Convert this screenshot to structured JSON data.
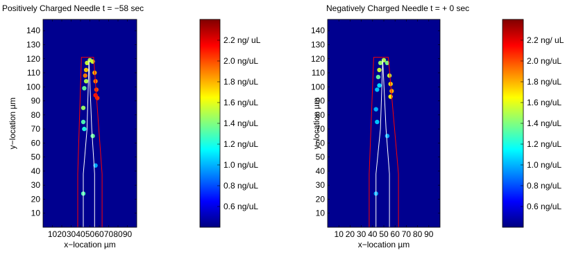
{
  "chart_data": [
    {
      "type": "heatmap",
      "title": "Positively Charged Needle t = −58 sec",
      "xlabel": "x−location µm",
      "ylabel": "y−location µm",
      "xlim": [
        0,
        100
      ],
      "ylim": [
        0,
        148
      ],
      "xticks": [
        10,
        20,
        30,
        40,
        50,
        60,
        70,
        80,
        90
      ],
      "yticks": [
        10,
        20,
        30,
        40,
        50,
        60,
        70,
        80,
        90,
        100,
        110,
        120,
        130,
        140
      ],
      "background_color": "#00008f",
      "needle_outline": {
        "color": "#ff0000",
        "points": [
          [
            37,
            0
          ],
          [
            37,
            38
          ],
          [
            41,
            121
          ],
          [
            54,
            121
          ],
          [
            63,
            38
          ],
          [
            63,
            0
          ]
        ]
      },
      "needle_center": {
        "color": "#ffffff",
        "points": [
          [
            43,
            0
          ],
          [
            43,
            38
          ],
          [
            47,
            70
          ],
          [
            49,
            119
          ],
          [
            52,
            70
          ],
          [
            55,
            38
          ],
          [
            55,
            0
          ]
        ]
      },
      "hotspots": [
        {
          "x": 47,
          "y": 117,
          "value": 1.55
        },
        {
          "x": 50,
          "y": 119,
          "value": 1.5
        },
        {
          "x": 53,
          "y": 118,
          "value": 1.55
        },
        {
          "x": 46,
          "y": 112,
          "value": 1.75
        },
        {
          "x": 45,
          "y": 108,
          "value": 1.9
        },
        {
          "x": 46,
          "y": 104,
          "value": 1.5
        },
        {
          "x": 55,
          "y": 110,
          "value": 1.8
        },
        {
          "x": 56,
          "y": 104,
          "value": 1.9
        },
        {
          "x": 57,
          "y": 98,
          "value": 2.0
        },
        {
          "x": 56,
          "y": 94,
          "value": 2.1
        },
        {
          "x": 58,
          "y": 92,
          "value": 2.05
        },
        {
          "x": 44,
          "y": 99,
          "value": 1.35
        },
        {
          "x": 43,
          "y": 85,
          "value": 1.45
        },
        {
          "x": 43,
          "y": 75,
          "value": 1.3
        },
        {
          "x": 44,
          "y": 70,
          "value": 1.2
        },
        {
          "x": 53,
          "y": 65,
          "value": 1.35
        },
        {
          "x": 56,
          "y": 44,
          "value": 1.0
        },
        {
          "x": 43,
          "y": 24,
          "value": 1.3
        }
      ],
      "colorbar": {
        "range": [
          0.4,
          2.4
        ],
        "tick_values": [
          0.6,
          0.8,
          1.0,
          1.2,
          1.4,
          1.6,
          1.8,
          2.0,
          2.2
        ],
        "tick_labels": [
          "0.6 ng/uL",
          "0.8 ng/uL",
          "1.0 ng/uL",
          "1.2  ng/uL",
          "1.4 ng/uL",
          "1.6 ng/uL",
          "1.8 ng/uL",
          "2.0 ng/uL",
          "2.2 ng/ uL"
        ]
      }
    },
    {
      "type": "heatmap",
      "title": "Negatively Charged Needle t = + 0 sec",
      "xlabel": "x−location µm",
      "ylabel": "y−location µm",
      "xlim": [
        0,
        100
      ],
      "ylim": [
        0,
        148
      ],
      "xticks": [
        10,
        20,
        30,
        40,
        50,
        60,
        70,
        80,
        90
      ],
      "yticks": [
        10,
        20,
        30,
        40,
        50,
        60,
        70,
        80,
        90,
        100,
        110,
        120,
        130,
        140
      ],
      "background_color": "#00008f",
      "needle_outline": {
        "color": "#ff0000",
        "points": [
          [
            37,
            0
          ],
          [
            37,
            38
          ],
          [
            41,
            121
          ],
          [
            54,
            121
          ],
          [
            63,
            38
          ],
          [
            63,
            0
          ]
        ]
      },
      "needle_center": {
        "color": "#ffffff",
        "points": [
          [
            43,
            0
          ],
          [
            43,
            38
          ],
          [
            47,
            70
          ],
          [
            49,
            119
          ],
          [
            52,
            70
          ],
          [
            55,
            38
          ],
          [
            55,
            0
          ]
        ]
      },
      "hotspots": [
        {
          "x": 47,
          "y": 117,
          "value": 1.45
        },
        {
          "x": 50,
          "y": 119,
          "value": 1.5
        },
        {
          "x": 53,
          "y": 117,
          "value": 1.4
        },
        {
          "x": 46,
          "y": 112,
          "value": 1.55
        },
        {
          "x": 45,
          "y": 107,
          "value": 1.35
        },
        {
          "x": 46,
          "y": 101,
          "value": 1.1
        },
        {
          "x": 55,
          "y": 108,
          "value": 1.55
        },
        {
          "x": 56,
          "y": 102,
          "value": 1.7
        },
        {
          "x": 57,
          "y": 97,
          "value": 1.8
        },
        {
          "x": 56,
          "y": 93,
          "value": 1.65
        },
        {
          "x": 44,
          "y": 98,
          "value": 1.05
        },
        {
          "x": 43,
          "y": 84,
          "value": 1.0
        },
        {
          "x": 44,
          "y": 75,
          "value": 1.05
        },
        {
          "x": 53,
          "y": 65,
          "value": 1.0
        },
        {
          "x": 43,
          "y": 24,
          "value": 1.0
        }
      ],
      "colorbar": {
        "range": [
          0.4,
          2.4
        ],
        "tick_values": [
          0.6,
          0.8,
          1.0,
          1.2,
          1.4,
          1.6,
          1.8,
          2.0,
          2.2
        ],
        "tick_labels": [
          "0.6 ng/uL",
          "0.8 ng/uL",
          "1.0 ng/uL",
          "1.2  ng/uL",
          "1.4 ng/uL",
          "1.6 ng/uL",
          "1.8 ng/uL",
          "2.0 ng/uL",
          "2.2 ng/ uL"
        ]
      }
    }
  ]
}
